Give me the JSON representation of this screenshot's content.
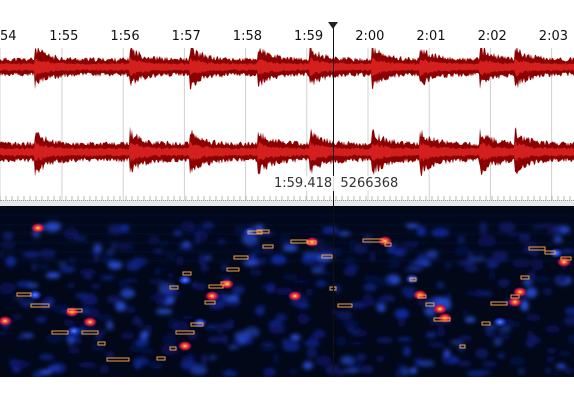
{
  "timeline": {
    "labels": [
      "54",
      "1:55",
      "1:56",
      "1:57",
      "1:58",
      "1:59",
      "2:00",
      "2:01",
      "2:02",
      "2:03"
    ]
  },
  "cursor": {
    "time": "1:59.418",
    "sample": "5266368"
  },
  "colors": {
    "waveform_outer": "#8b0000",
    "waveform_inner": "#d41f1f",
    "spectrogram_bg": "#020818",
    "note_box": "#f0a040",
    "grid": "#d0d0d0"
  }
}
